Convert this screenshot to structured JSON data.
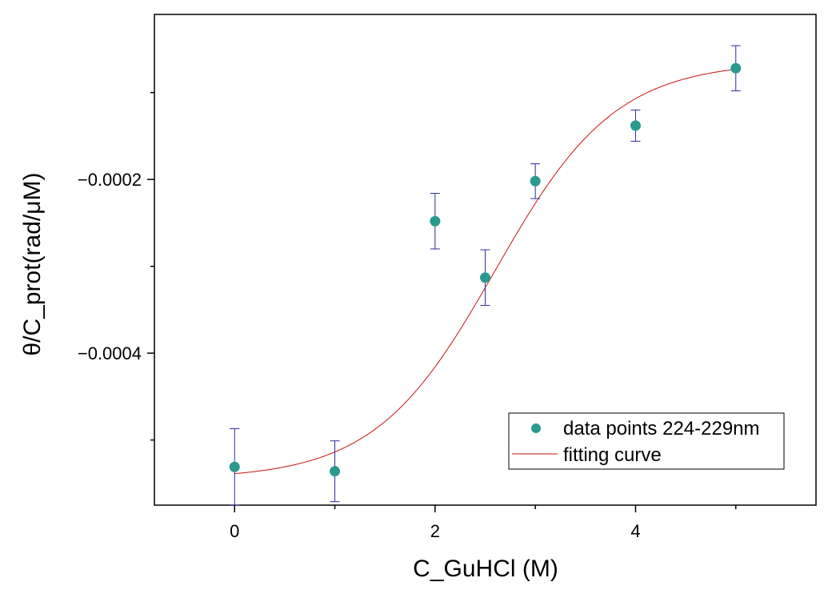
{
  "chart_data": {
    "type": "scatter",
    "title": "",
    "xlabel": "C_GuHCl (M)",
    "ylabel": "θ/C_prot(rad/μM)",
    "xlim": [
      -0.8,
      5.8
    ],
    "ylim": [
      -0.000575,
      -1e-05
    ],
    "x_ticks": [
      0,
      2,
      4
    ],
    "x_tick_labels": [
      "0",
      "2",
      "4"
    ],
    "x_minor_ticks": [
      1,
      3,
      5
    ],
    "y_ticks": [
      -0.0004,
      -0.0002
    ],
    "y_tick_labels": [
      "−0.0004",
      "−0.0002"
    ],
    "y_minor_ticks": [
      -0.0005,
      -0.0003,
      -0.0001
    ],
    "grid": false,
    "legend_position": "bottom-right",
    "series": [
      {
        "name": "data points 224-229nm",
        "kind": "scatter",
        "color": "#2a9a8f",
        "error_color": "#2b2ba0",
        "x": [
          0,
          1,
          2,
          2.5,
          3,
          4,
          5
        ],
        "y": [
          -0.000531,
          -0.000536,
          -0.000248,
          -0.000313,
          -0.000202,
          -0.000138,
          -7.2e-05
        ],
        "error": [
          4.4e-05,
          3.5e-05,
          3.2e-05,
          3.2e-05,
          2e-05,
          1.8e-05,
          2.6e-05
        ]
      },
      {
        "name": "fitting curve",
        "kind": "line",
        "color": "#cc1111",
        "model": "sigmoid",
        "params": {
          "bottom": -0.000545,
          "top": -6.45e-05,
          "x0": 2.6,
          "slope": 0.6
        },
        "x_range": [
          0,
          5
        ]
      }
    ]
  }
}
